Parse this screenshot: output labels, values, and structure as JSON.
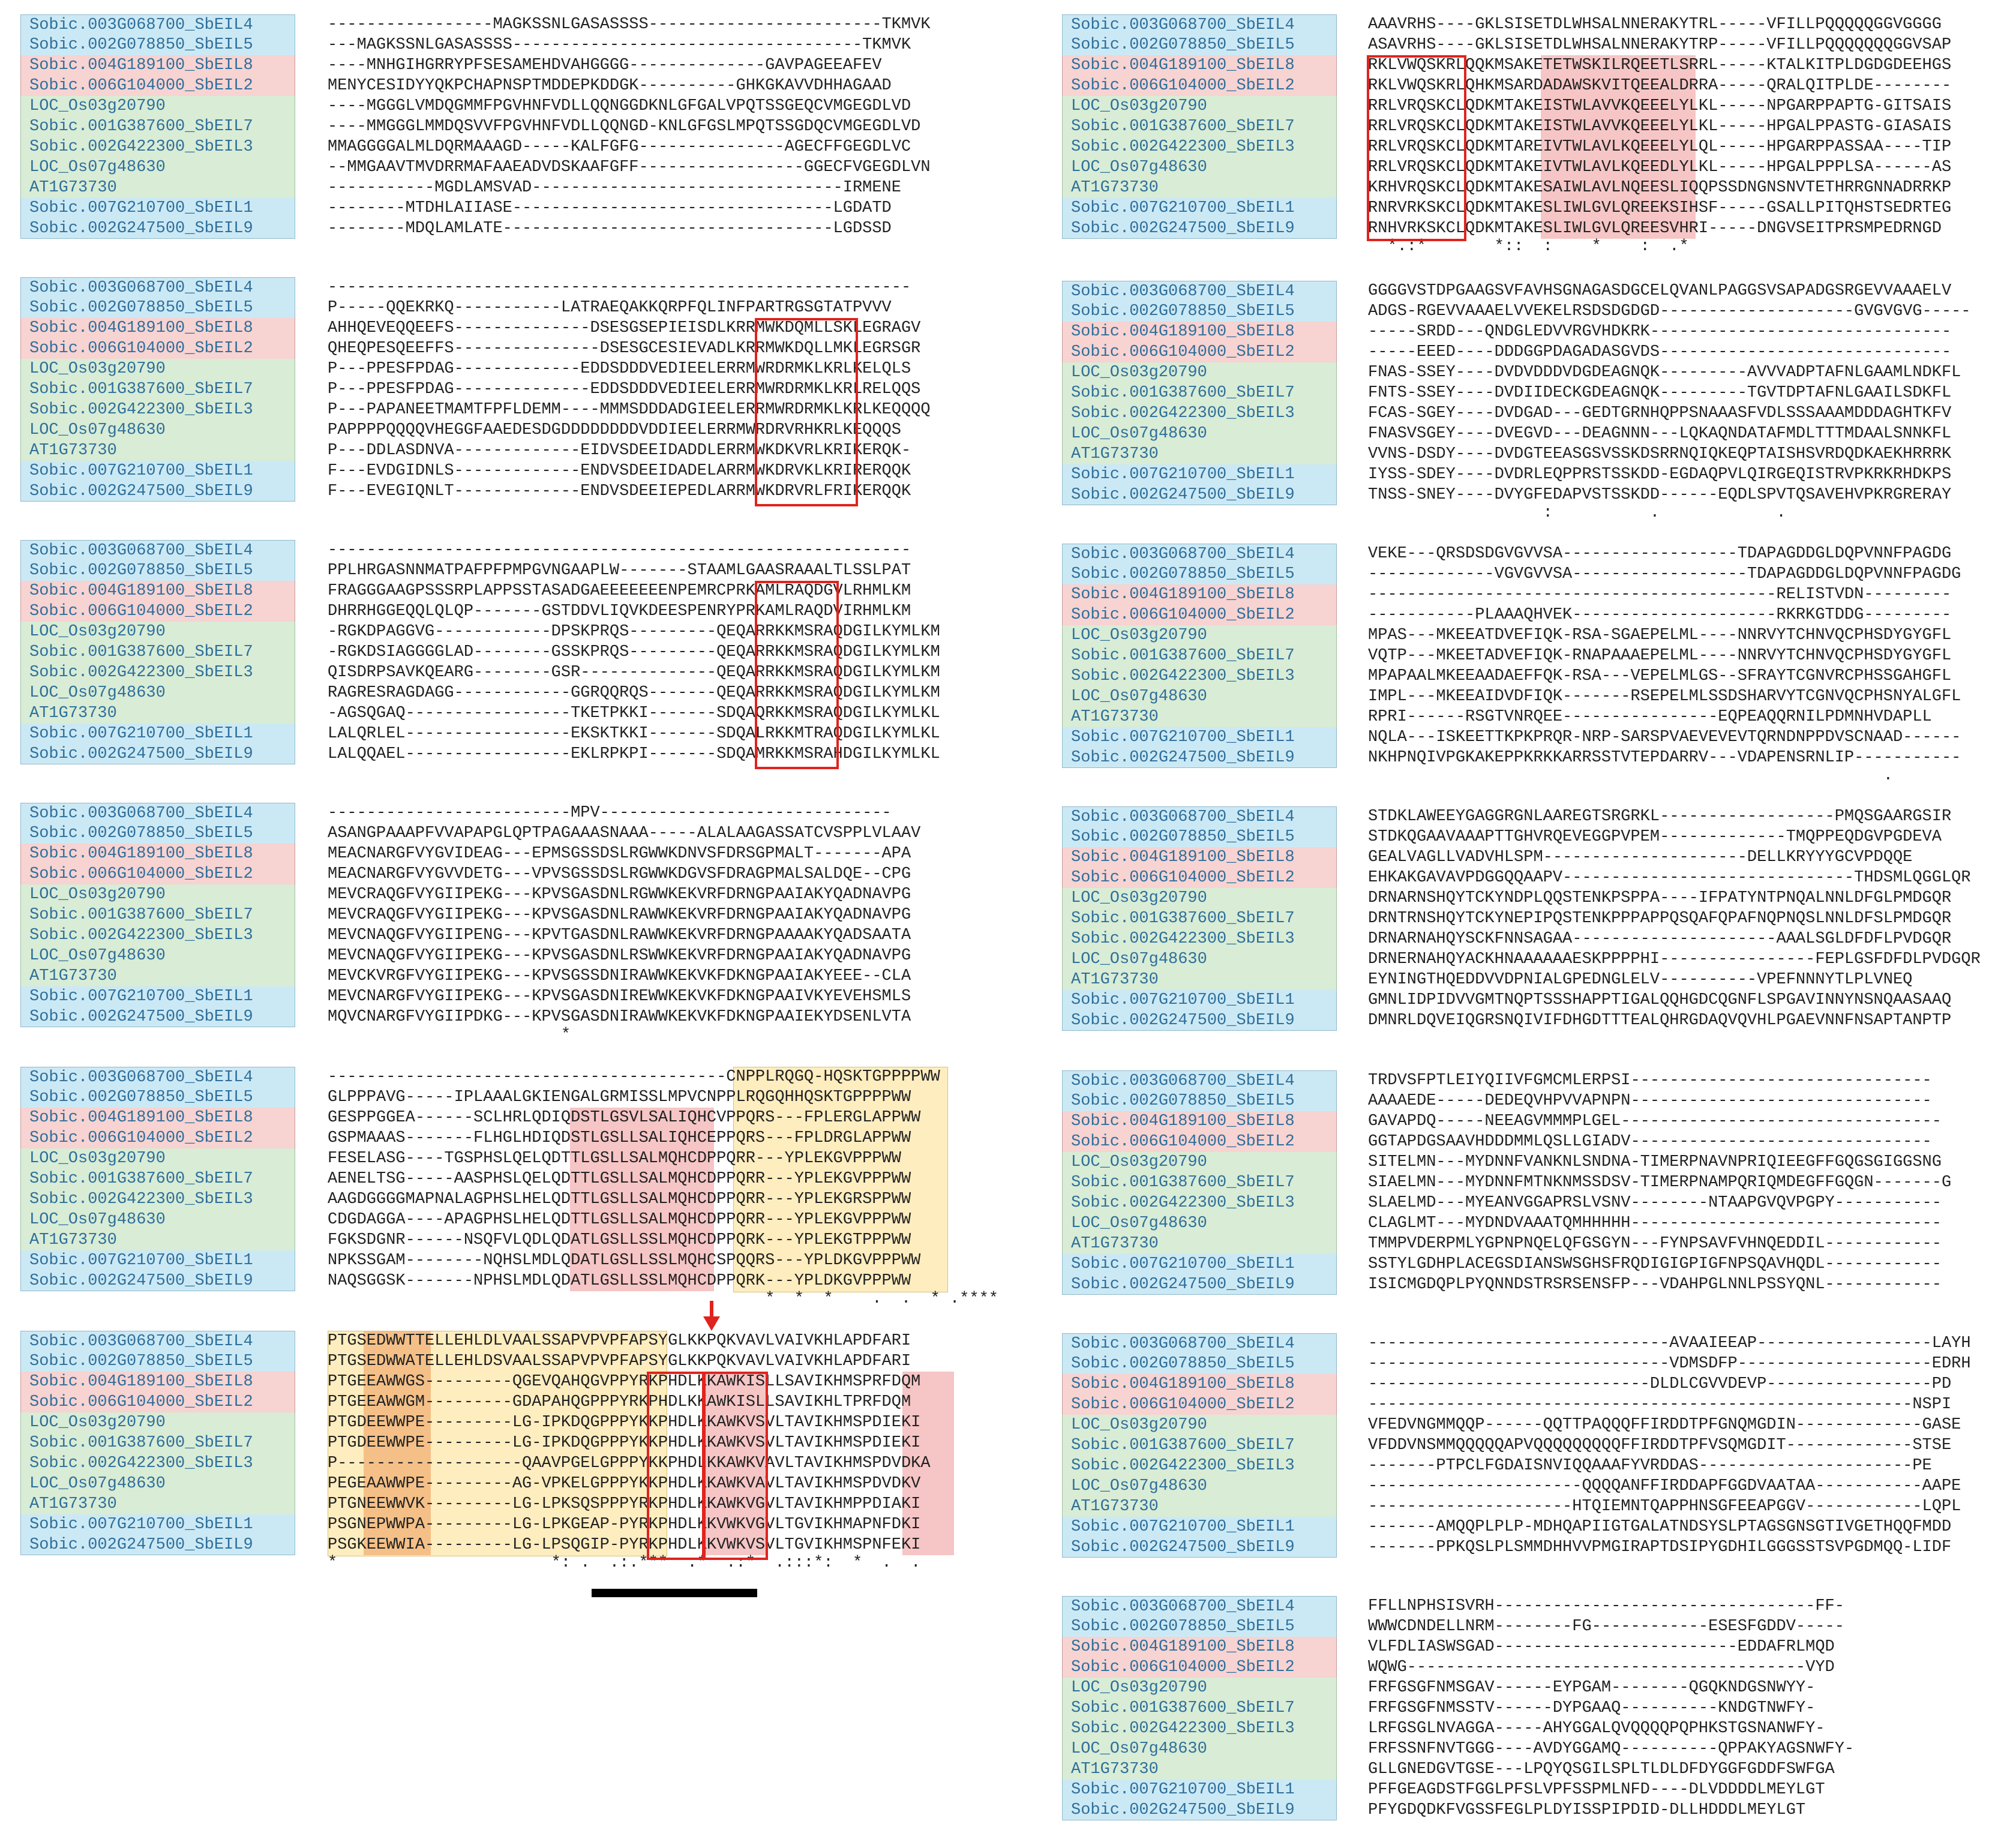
{
  "seq_names": [
    "Sobic.003G068700_SbEIL4",
    "Sobic.002G078850_SbEIL5",
    "Sobic.004G189100_SbEIL8",
    "Sobic.006G104000_SbEIL2",
    "LOC_Os03g20790",
    "Sobic.001G387600_SbEIL7",
    "Sobic.002G422300_SbEIL3",
    "LOC_Os07g48630",
    "AT1G73730",
    "Sobic.007G210700_SbEIL1",
    "Sobic.002G247500_SbEIL9"
  ],
  "group_colors": {
    "blue": "#cbe9f5",
    "pink": "#f7d3d2",
    "green": "#d8ecd6",
    "box": "#e0231e"
  },
  "left_blocks": [
    {
      "rows": [
        "-----------------MAGKSSNLGASASSSS------------------------TKMVK",
        "---MAGKSSNLGASASSSS------------------------------------TKMVK",
        "----MNHGIHGRRYPFSESAMEHDVAHGGGG--------------GAVPAGEEAFEV",
        "MENYCESIDYYQKPCHAPNSPTMDDEPKDDGK----------GHKGKAVVDHHAGAAD",
        "----MGGGLVMDQGMMFPGVHNFVDLLQQNGGDKNLGFGALVPQTSSGEQCVMGEGDLVD",
        "----MMGGGLMMDQSVVFPGVHNFVDLLQQNGD-KNLGFGSLMPQTSSGDQCVMGEGDLVD",
        "MMAGGGGALMLDQRMAAAGD-----KALFGFG---------------AGECFFGEGDLVC",
        "--MMGAAVTMVDRRMAFAAEADVDSKAAFGFF-----------------GGECFVGEGDLVN",
        "-----------MGDLAMSVAD--------------------------------IRMENE",
        "--------MTDHLAIIASE---------------------------------LGDATD",
        "--------MDQLAMLATE----------------------------------LGDSSD"
      ],
      "consensus": ""
    },
    {
      "rows": [
        "------------------------------------------------------------",
        "P-----QQEKRKQ-----------LATRAEQAKKQRPFQLINFPARTRGSGTATPVVV",
        "AHHQEVEQQEEFS--------------DSESGSEPIEISDLKRRMWKDQMLLSKLEGRAGV",
        "QHEQPESQEEFFS---------------DSESGCESIEVADLKRRMWKDQLLMKLEGRSGR",
        "P---PPESFPDAG-------------EDDSDDDVEDIEELERRMWRDRMKLKRLKELQLS",
        "P---PPESFPDAG--------------EDDSDDDVEDIEELERRMWRDRMKLKRLRELQQS",
        "P---PAPANEETMAMTFPFLDEMM----MMMSDDDADGIEELERRMWRDRMKLKRLKEQQQQ",
        "PAPPPPQQQQVHEGGFAAEDESDGDDDDDDDDVDDIEELERRMWRDRVRHKRLKEQQQS",
        "P---DDLASDNVA-------------EIDVSDEEIDADDLERRMWKDKVRLKRIKERQK-",
        "F---EVDGIDNLS-------------ENDVSDEEIDADELARRMWKDRVKLKRIRERQQK",
        "F---EVEGIQNLT-------------ENDVSDEEIEPEDLARRMWKDRVRLFRIKERQQK"
      ],
      "consensus": ""
    },
    {
      "rows": [
        "------------------------------------------------------------",
        "PPLHRGASNNMATPAFPFPMPGVNGAAPLW-------STAAMLGAASRAAALTLSSLPAT",
        "FRAGGGAAGPSSSRPLAPPSSTASADGAEEEEEEENPEMRCPRKAMLRAQDGVLRHMLKM",
        "DHRRHGGEQQLQLQP-------GSTDDVLIQVKDEESPENRYPRKAMLRAQDVIRHMLKM",
        "-RGKDPAGGVG------------DPSKPRQS---------QEQARRKKMSRAQDGILKYMLKM",
        "-RGKDSIAGGGGLAD--------GSSKPRQS---------QEQARRKKMSRAQDGILKYMLKM",
        "QISDRPSAVKQEARG--------GSR--------------QEQARRKKMSRAQDGILKYMLKM",
        "RAGRESRAGDAGG------------GGRQQRQS-------QEQARRKKMSRAQDGILKYMLKM",
        "-AGSQGAQ-----------------TKETPKKI-------SDQAQRKKMSRAQDGILKYMLKL",
        "LALQRLEL-----------------EKSKTKKI-------SDQALRKKMTRAQDGILKYMLKL",
        "LALQQAEL-----------------EKLRPKPI-------SDQAMRKKMSRAHDGILKYMLKL"
      ],
      "consensus": ""
    },
    {
      "rows": [
        "-------------------------MPV------------------------------",
        "ASANGPAAAPFVVAPAPGLQPTPAGAAASNAAA-----ALALAAGASSATCVSPPLVLAAV",
        "MEACNARGFVYGVIDEAG---EPMSGSSDSLRGWWKDNVSFDRSGPMALT-------APA",
        "MEACNARGFVYGVVDETG---VPVSGSSDSLRGWWKDGVSFDRAGPMALSALDQE--CPG",
        "MEVCRAQGFVYGIIPEKG---KPVSGASDNLRGWWKEKVRFDRNGPAAIAKYQADNAVPG",
        "MEVCRAQGFVYGIIPEKG---KPVSGASDNLRAWWKEKVRFDRNGPAAIAKYQADNAVPG",
        "MEVCNAQGFVYGIIPENG---KPVTGASDNLRAWWKEKVRFDRNGPAAAAKYQADSAATA",
        "MEVCNAQGFVYGIIPEKG---KPVSGASDNLRSWWKEKVRFDRNGPAAIAKYQADNAVPG",
        "MEVCKVRGFVYGIIPEKG---KPVSGSSDNIRAWWKEKVKFDKNGPAAIAKYEEE--CLA",
        "MEVCNARGFVYGIIPEKG---KPVSGASDNIREWWKEKVKFDKNGPAAIVKYEVEHSMLS",
        "MQVCNARGFVYGIIPDKG---KPVSGASDNIRAWWKEKVKFDKNGPAAIEKYDSENLVTA"
      ],
      "consensus": "                        *                                   "
    },
    {
      "rows": [
        "-----------------------------------------CNPPLRQGQ-HQSKTGPPPPWW",
        "GLPPPAVG-----IPLAAALGKIENGALGRMISSLMPVCNPPLRQGQHHQSKTGPPPPWW",
        "GESPPGGEA------SCLHRLQDIQDSTLGSVLSALIQHCVPPQRS---FPLERGLAPPWW",
        "GSPMAAAS-------FLHGLHDIQDSTLGSLLSALIQHCEPPQRS---FPLDRGLAPPWW",
        "FESELASG----TGSPHSLQELQDTTLGSLLSALMQHCDPPQRR---YPLEKGVPPPWW",
        "AENELTSG-----AASPHSLQELQDTTLGSLLSALMQHCDPPQRR---YPLEKGVPPPWW",
        "AAGDGGGGMAPNALAGPHSLHELQDTTLGSLLSALMQHCDPPQRR---YPLEKGRSPPWW",
        "CDGDAGGA----APAGPHSLHELQDTTLGSLLSALMQHCDPPQRR---YPLEKGVPPPWW",
        "FGKSDGNR------NSQFVLQDLQDATLGSLLSSLMQHCDPPQRK---YPLEKGTPPPWW",
        "NPKSSGAM--------NQHSLMDLQDATLGSLLSSLMQHCSPQQRS---YPLDKGVPPPWW",
        "NAQSGGSK-------NPHSLMDLQDATLGSLLSSLMQHCDPPQRK---YPLDKGVPPPWW"
      ],
      "consensus": "                                             *  *  *    .  .  * .****"
    },
    {
      "rows": [
        "PTGSEDWWTTELLEHLDLVAALSSAPVPVPFAPSYGLKKPQKVAVLVAIVKHLAPDFARI",
        "PTGSEDWWATELLEHLDSVAALSSAPVPVPFAPSYGLKKPQKVAVLVAIVKHLAPDFARI",
        "PTGEEAWWGS---------QGEVQAHQGVPPYRKPHDLKKAWKISLLSAVIKHMSPRFDQM",
        "PTGEEAWWGM---------GDAPAHQGPPPYRKPHDLKKAWKISLLSAVIKHLTPRFDQM",
        "PTGDEEWWPE---------LG-IPKDQGPPPYKKPHDLKKAWKVSVLTAVIKHMSPDIEKI",
        "PTGDEEWWPE---------LG-IPKDQGPPPYKKPHDLKKAWKVSVLTAVIKHMSPDIEKI",
        "P-------------------QAAVPGELGPPPYKKPHDLKKAWKVAVLTAVIKHMSPDVDKA",
        "PEGEAAWWPE---------AG-VPKELGPPPYKKPHDLKKAWKVAVLTAVIKHMSPDVDKV",
        "PTGNEEWWVK---------LG-LPKSQSPPPYRKPHDLKKAWKVGVLTAVIKHMPPDIAKI",
        "PSGNEPWWPA---------LG-LPKGEAP-PYRKPHDLKKVWKVGVLTGVIKHMAPNFDKI",
        "PSGKEEWWIA---------LG-LPSQGIP-PYRKPHDLKKVWKVSVLTGVIKHMSPNFEKI"
      ],
      "consensus": "*                      *: .  .:.***  .*  .:*  .:::*:  *  .  ."
    }
  ],
  "right_blocks": [
    {
      "rows": [
        "AAAVRHS----GKLSISETDLWHSALNNERAKYTRL-----VFILLPQQQQQGGVGGGG",
        "ASAVRHS----GKLSISETDLWHSALNNERAKYTRP-----VFILLPQQQQQQQGGVSAP",
        "RKLVWQSKRLQQKMSAKETETWSKILRQEETLSRRL-----KTALKITPLDGDGDEEHGS",
        "RKLVWQSKRLQHKMSARDADAWSKVITQEEALDRRA-----QRALQITPLDE--------",
        "RRLVRQSKCLQDKMTAKEISTWLAVVKQEEELYLKL-----NPGARPPAPTG-GITSAIS",
        "RRLVRQSKCLQDKMTAKEISTWLAVVKQEEELYLKL-----HPGALPPASTG-GIASAIS",
        "RRLVRQSKCLQDKMTAREIVTWLAVLKQEEELYLQL-----HPGARPPASSAA----TIP",
        "RRLVRQSKCLQDKMTAKEIVTWLAVLKQEEDLYLKL-----HPGALPPPLSA------AS",
        "KRHVRQSKCLQDKMTAKESAIWLAVLNQEESLIQQPSSDNGNSNVTETHRRGNNADRRKP",
        "RNRVRKSKCLQDKMTAKESLIWLGVLQREEKSIHSF-----GSALLPITQHSTSEDRTEG",
        "RNHVRKSKCLQDKMTAKESLIWLGVLQREESVHRI-----DNGVSEITPRSMPEDRNGD"
      ],
      "consensus": "  *.:*       *::  :    *    :  .*"
    },
    {
      "rows": [
        "GGGGVSTDPGAAGSVFAVHSGNAGASDGCELQVANLPAGGSVSAPADGSRGEVVAAAELV",
        "ADGS-RGEVVAAAELVVEKELRSDSDGDGD--------------------GVGVGVG-----",
        "-----SRDD---QNDGLEDVVRGVHDKRK-------------------------------",
        "-----EEED----DDDGGPDAGADASGVDS------------------------------",
        "FNAS-SSEY----DVDVDDDVDGDEAGNQK---------AVVVADPTAFNLGAAMLNDKFL",
        "FNTS-SSEY----DVDIIDECKGDEAGNQK---------TGVTDPTAFNLGAAILSDKFL",
        "FCAS-SGEY----DVDGAD---GEDTGRNHQPPSNAAASFVDLSSSAAAMDDDAGHTKFV",
        "FNASVSGEY----DVEGVD---DEAGNNN---LQKAQNDATAFMDLTTTMDAALSNNKFL",
        "VVNS-DSDY----DVDGTEEASGSVSSKDSRRNQIQKEQPTAISHSVRDQDKAEKHRRRK",
        "IYSS-SDEY----DVDRLEQPPRSTSSKDD-EGDAQPVLQIRGEQISTRVPKRKRHDKPS",
        "TNSS-SNEY----DVYGFEDAPVSTSSKDD------EQDLSPVTQSAVEHVPKRGRERAY"
      ],
      "consensus": "                  :          .            ."
    },
    {
      "rows": [
        "VEKE---QRSDSDGVGVVSA------------------TDAPAGDDGLDQPVNNFPAGDG",
        "-------------VGVGVVSA------------------TDAPAGDDGLDQPVNNFPAGDG",
        "------------------------------------------RELISTVDN---------",
        "-----------PLAAAQHVEK---------------------RKRKGTDDG---------",
        "MPAS---MKEEATDVEFIQK-RSA-SGAEPELML----NNRVYTCHNVQCPHSDYGYGFL",
        "VQTP---MKEETADVEFIQK-RNAPAAAEPELML----NNRVYTCHNVQCPHSDYGYGFL",
        "MPAPAALMKEEAADAEFFQK-RSA---VEPELMLGS--SFRAYTCGNVRCPHSSGAHGFL",
        "IMPL---MKEEAIDVDFIQK-------RSEPELMLSSDSHARVYTCGNVQCPHSNYALGFL",
        "RPRI------RSGTVNRQEE----------------EQPEAQQRNILPDMNHVDAPLL",
        "NQLA---ISKEETTKPKPRQR-NRP-SARSPVAEVEVEVTQRNDNPPDVSCNAAD------",
        "NKHPNQIVPGKAKEPPKRKKARRSSTVTEPDARRV---VDAPENSRNLIP-----------"
      ],
      "consensus": "                                                     ."
    },
    {
      "rows": [
        "STDKLAWEEYGAGGRGNLAAREGTSRGRKL------------------PMQSGAARGSIR",
        "STDKQGAAVAAAPTTGHVRQEVEGGPVPEM-------------TMQPPEQDGVPGDEVA",
        "GEALVAGLLVADVHLSPM---------------------DELLKRYYYGCVPDQQE",
        "EHKAKGAVAVPDGGQQAAPV------------------------------THDSMLQGGLQR",
        "DRNARNSHQYTCKYNDPLQQSTENKPSPPA----IFPATYNTPNQALNNLDFGLPMDGQR",
        "DRNTRNSHQYTCKYNEPIPQSTENKPPPAPPQSQAFQPAFNQPNQSLNNLDFSLPMDGQR",
        "DRNARNAHQYSCKFNNSAGAA---------------------AAALSGLDFDFLPVDGQR",
        "DRNERNAHQYACKHNAAAAAAESKPPPPHI----------------FEPLGSFDFDLPVDGQR",
        "EYNINGTHQEDDVVDPNIALGPEDNGLELV----------VPEFNNNYTLPLVNEQ",
        "GMNLIDPIDVVGMTNQPTSSSHAPPTIGALQQHGDCQGNFLSPGAVINNYNSNQAASAAQ",
        "DMNRLDQVEIQGRSNQIVIFDHGDTTTEALQHRGDAQVQVHLPGAEVNNFNSAPTANPTP"
      ],
      "consensus": ""
    },
    {
      "rows": [
        "TRDVSFPTLEIYQIIVFGMCMLERPSI-------------------------------",
        "AAAAEDE-----DEDEQVHPVVAPNPN-------------------------------",
        "GAVAPDQ-----NEEAGVMMMPLGEL---------------------------------",
        "GGTAPDGSAAVHDDDMMLQSLLGIADV-------------------------------",
        "SITELMN---MYDNNFVANKNLSNDNA-TIMERPNAVNPRIQIEEGFFGQGSGIGGSNG",
        "SIAELMN---MYDNNFMTNKNMSSDSV-TIMERPNAMPQRIQMDEGFFGQGN-------G",
        "SLAELMD---MYEANVGGAPRSLVSNV--------NTAAPGVQVPGPY-----------",
        "CLAGLMT---MYDNDVAAATQMHHHHH--------------------------------",
        "TMMPVDERPMLYGPNPNQELQFGSGYN---FYNPSAVFVHNQEDDIL------------",
        "SSTYLGDHPLACEGSDIANSWSGHSFRQDIGIGPIGFNPSQAVHQDL------------",
        "ISICMGDQPLPYQNNDSTRSRSENSFP---VDAHPGLNNLPSSYQNL------------"
      ],
      "consensus": ""
    },
    {
      "rows": [
        "-------------------------------AVAAIEEAP------------------LAYH",
        "-------------------------------VDMSDFP--------------------EDRH",
        "-----------------------------DLDLCGVVDEVP-----------------PD",
        "--------------------------------------------------------NSPI",
        "VFEDVNGMMQQP------QQTTPAQQQFFIRDDTPFGNQMGDIN-------------GASE",
        "VFDDVNSMMQQQQQAPVQQQQQQQQQFFIRDDTPFVSQMGDIT-------------STSE",
        "-------PTPCLFGDAISNVIQQAAAFYVRDDAS----------------------PE",
        "----------------------QQQQANFFIRDDAPFGGDVAATAA-----------AAPE",
        "---------------------HTQIEMNTQAPPHNSGFEEAPGGV------------LQPL",
        "-------AMQQPLPLP-MDHQAPIIGTGALATNDSYSLPTAGSGNSGTIVGETHQQFMDD",
        "-------PPKQSLPLSMMDHHVVPMGIRAPTDSIPYGDHILGGGSSTSVPGDMQQ-LIDF"
      ],
      "consensus": ""
    },
    {
      "rows": [
        "FFLLNPHSISVRH---------------------------------FF-",
        "WWWCDNDELLNRM--------FG------------ESESFGDDV-----",
        "VLFDLIASWSGAD-------------------------EDDAFRLMQD",
        "WQWG-----------------------------------------VYD",
        "FRFGSGFNMSGAV------EYPGAM--------QGQKNDGSNWYY-",
        "FRFGSGFNMSSTV------DYPGAAQ----------KNDGTNWFY-",
        "LRFGSGLNVAGGA-----AHYGGALQVQQQQPQPHKSTGSNANWFY-",
        "FRFSSNFNVTGGG----AVDYGGAMQ----------QPPAKYAGSNWFY-",
        "GLLGNEDGVTGSE---LPQYQSGILSPLTLDLDFDYGGFGDDFSWFGA",
        "PFFGEAGDSTFGGLPFSLVPFSSPMLNFD----DLVDDDDLMEYLGT",
        "PFYGDQDKFVGSSFEGLPLDYISSPIPDID-DLLHDDDLMEYLGT"
      ],
      "consensus": ""
    }
  ]
}
